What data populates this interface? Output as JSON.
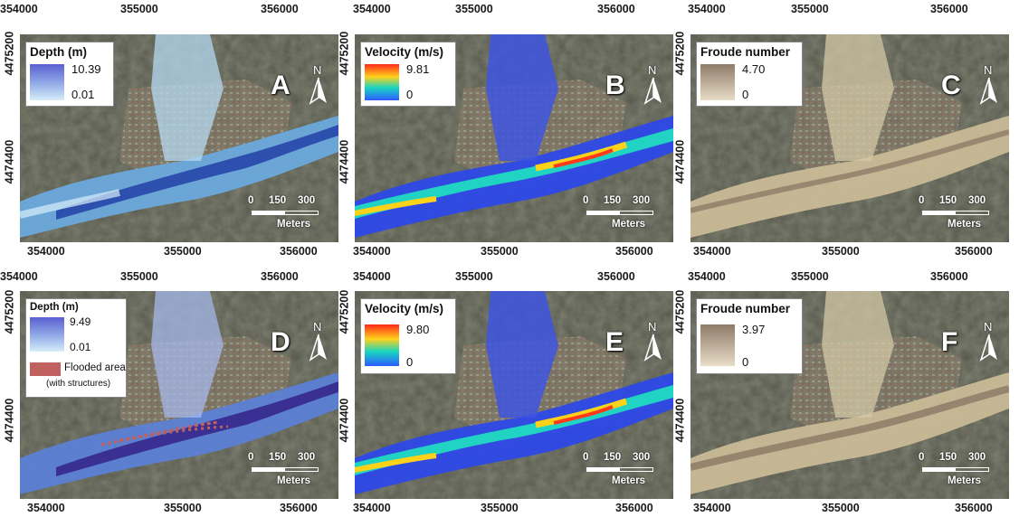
{
  "colors": {
    "depth_ramp": [
      "#5a5fd0",
      "#8ea6e6",
      "#d6eef9"
    ],
    "velocity_ramp": [
      "#ff2a1a",
      "#ffd21a",
      "#1ad6c0",
      "#2c5cff"
    ],
    "froude_ramp": [
      "#8e7b69",
      "#e9ddc8"
    ],
    "flooded_structures": "#c0605f",
    "terrain": "#4f5142"
  },
  "axes": {
    "x_ticks": [
      "354000",
      "355000",
      "356000"
    ],
    "y_ticks": [
      "4475200",
      "4474400"
    ]
  },
  "north_label": "N",
  "scale": {
    "ticks": [
      "0",
      "150",
      "300"
    ],
    "units": "Meters"
  },
  "panels": [
    {
      "letter": "A",
      "legend_title": "Depth (m)",
      "max": "10.39",
      "min": "0.01"
    },
    {
      "letter": "B",
      "legend_title": "Velocity (m/s)",
      "max": "9.81",
      "min": "0"
    },
    {
      "letter": "C",
      "legend_title": "Froude number",
      "max": "4.70",
      "min": "0"
    },
    {
      "letter": "D",
      "legend_title": "Depth (m)",
      "max": "9.49",
      "min": "0.01",
      "extra_label_1": "Flooded area",
      "extra_label_2": "(with structures)"
    },
    {
      "letter": "E",
      "legend_title": "Velocity (m/s)",
      "max": "9.80",
      "min": "0"
    },
    {
      "letter": "F",
      "legend_title": "Froude number",
      "max": "3.97",
      "min": "0"
    }
  ]
}
